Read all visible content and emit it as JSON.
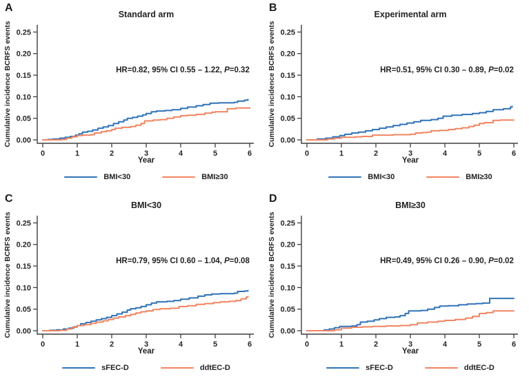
{
  "figure": {
    "background": "#ffffff",
    "colors": {
      "series1": "#2f72b8",
      "series2": "#f28460",
      "axis": "#3d3d3d",
      "text": "#262626"
    },
    "axes": {
      "ylabel": "Cumulative incidence BCRFS events",
      "xlabel": "Year",
      "xlim": [
        0,
        6
      ],
      "ylim": [
        0,
        0.27
      ],
      "grid": false,
      "legend_position": "bottom-center",
      "yticks": [
        {
          "v": 0.0,
          "label": "0.00"
        },
        {
          "v": 0.05,
          "label": "0.05"
        },
        {
          "v": 0.1,
          "label": "0.10"
        },
        {
          "v": 0.15,
          "label": "0.15"
        },
        {
          "v": 0.2,
          "label": "0.20"
        },
        {
          "v": 0.25,
          "label": "0.25"
        }
      ],
      "xticks": [
        {
          "v": 0,
          "label": "0"
        },
        {
          "v": 1,
          "label": "1"
        },
        {
          "v": 2,
          "label": "2"
        },
        {
          "v": 3,
          "label": "3"
        },
        {
          "v": 4,
          "label": "4"
        },
        {
          "v": 5,
          "label": "5"
        },
        {
          "v": 6,
          "label": "6"
        }
      ]
    }
  },
  "chart_data": [
    {
      "type": "line",
      "panel": "A",
      "title": "Standard arm",
      "xlabel": "Year",
      "ylabel": "Cumulative incidence BCRFS events",
      "annotation": "HR=0.82, 95% CI 0.55 – 1.22, P=0.32",
      "annotation_prefix": "HR=0.82, 95% CI 0.55 – 1.22, ",
      "annotation_p": "P",
      "annotation_suffix": "=0.32",
      "legend": [
        "BMI<30",
        "BMI≥30"
      ],
      "series": [
        {
          "name": "BMI<30",
          "color_key": "series1",
          "points": [
            [
              0,
              0
            ],
            [
              0.15,
              0.001
            ],
            [
              0.3,
              0.002
            ],
            [
              0.5,
              0.004
            ],
            [
              0.65,
              0.006
            ],
            [
              0.8,
              0.008
            ],
            [
              0.95,
              0.011
            ],
            [
              1.05,
              0.014
            ],
            [
              1.15,
              0.018
            ],
            [
              1.3,
              0.02
            ],
            [
              1.45,
              0.023
            ],
            [
              1.6,
              0.027
            ],
            [
              1.75,
              0.03
            ],
            [
              1.9,
              0.033
            ],
            [
              2.05,
              0.038
            ],
            [
              2.2,
              0.042
            ],
            [
              2.35,
              0.046
            ],
            [
              2.45,
              0.05
            ],
            [
              2.6,
              0.052
            ],
            [
              2.75,
              0.055
            ],
            [
              2.9,
              0.058
            ],
            [
              3.0,
              0.061
            ],
            [
              3.15,
              0.065
            ],
            [
              3.3,
              0.067
            ],
            [
              3.55,
              0.068
            ],
            [
              3.75,
              0.07
            ],
            [
              4.0,
              0.073
            ],
            [
              4.2,
              0.076
            ],
            [
              4.45,
              0.079
            ],
            [
              4.65,
              0.082
            ],
            [
              4.85,
              0.085
            ],
            [
              5.1,
              0.086
            ],
            [
              5.55,
              0.087
            ],
            [
              5.65,
              0.09
            ],
            [
              5.85,
              0.092
            ],
            [
              5.95,
              0.094
            ]
          ]
        },
        {
          "name": "BMI≥30",
          "color_key": "series2",
          "points": [
            [
              0,
              0
            ],
            [
              0.55,
              0.001
            ],
            [
              0.7,
              0.004
            ],
            [
              0.85,
              0.007
            ],
            [
              1.0,
              0.01
            ],
            [
              1.15,
              0.011
            ],
            [
              1.4,
              0.012
            ],
            [
              1.5,
              0.016
            ],
            [
              1.7,
              0.019
            ],
            [
              1.85,
              0.021
            ],
            [
              2.0,
              0.024
            ],
            [
              2.1,
              0.027
            ],
            [
              2.3,
              0.029
            ],
            [
              2.55,
              0.031
            ],
            [
              2.7,
              0.034
            ],
            [
              2.85,
              0.038
            ],
            [
              2.95,
              0.044
            ],
            [
              3.2,
              0.046
            ],
            [
              3.4,
              0.047
            ],
            [
              3.6,
              0.05
            ],
            [
              3.8,
              0.053
            ],
            [
              4.0,
              0.056
            ],
            [
              4.2,
              0.057
            ],
            [
              4.45,
              0.059
            ],
            [
              4.7,
              0.062
            ],
            [
              4.9,
              0.064
            ],
            [
              5.0,
              0.065
            ],
            [
              5.35,
              0.072
            ],
            [
              5.6,
              0.074
            ],
            [
              6.0,
              0.075
            ]
          ]
        }
      ]
    },
    {
      "type": "line",
      "panel": "B",
      "title": "Experimental arm",
      "xlabel": "Year",
      "ylabel": "Cumulative incidence BCRFS events",
      "annotation": "HR=0.51, 95% CI 0.30 – 0.89, P=0.02",
      "annotation_prefix": "HR=0.51, 95% CI 0.30 – 0.89, ",
      "annotation_p": "P",
      "annotation_suffix": "=0.02",
      "legend": [
        "BMI<30",
        "BMI≥30"
      ],
      "series": [
        {
          "name": "BMI<30",
          "color_key": "series1",
          "points": [
            [
              0,
              0
            ],
            [
              0.3,
              0.002
            ],
            [
              0.55,
              0.004
            ],
            [
              0.75,
              0.007
            ],
            [
              0.95,
              0.01
            ],
            [
              1.1,
              0.013
            ],
            [
              1.3,
              0.016
            ],
            [
              1.5,
              0.018
            ],
            [
              1.7,
              0.021
            ],
            [
              1.9,
              0.024
            ],
            [
              2.1,
              0.027
            ],
            [
              2.3,
              0.03
            ],
            [
              2.5,
              0.033
            ],
            [
              2.7,
              0.036
            ],
            [
              2.9,
              0.039
            ],
            [
              3.1,
              0.042
            ],
            [
              3.3,
              0.045
            ],
            [
              3.6,
              0.047
            ],
            [
              3.8,
              0.05
            ],
            [
              3.95,
              0.055
            ],
            [
              4.2,
              0.057
            ],
            [
              4.5,
              0.059
            ],
            [
              4.8,
              0.061
            ],
            [
              5.0,
              0.063
            ],
            [
              5.2,
              0.066
            ],
            [
              5.4,
              0.07
            ],
            [
              5.7,
              0.072
            ],
            [
              5.9,
              0.076
            ],
            [
              5.95,
              0.078
            ]
          ]
        },
        {
          "name": "BMI≥30",
          "color_key": "series2",
          "points": [
            [
              0,
              0
            ],
            [
              0.6,
              0.002
            ],
            [
              0.8,
              0.004
            ],
            [
              1.0,
              0.006
            ],
            [
              1.4,
              0.007
            ],
            [
              1.6,
              0.008
            ],
            [
              1.9,
              0.011
            ],
            [
              2.5,
              0.012
            ],
            [
              3.0,
              0.013
            ],
            [
              3.15,
              0.016
            ],
            [
              3.35,
              0.017
            ],
            [
              3.5,
              0.018
            ],
            [
              3.6,
              0.021
            ],
            [
              3.85,
              0.022
            ],
            [
              4.1,
              0.024
            ],
            [
              4.3,
              0.026
            ],
            [
              4.5,
              0.028
            ],
            [
              4.7,
              0.031
            ],
            [
              4.85,
              0.034
            ],
            [
              5.0,
              0.038
            ],
            [
              5.15,
              0.04
            ],
            [
              5.4,
              0.045
            ],
            [
              5.6,
              0.046
            ],
            [
              6.0,
              0.046
            ]
          ]
        }
      ]
    },
    {
      "type": "line",
      "panel": "C",
      "title": "BMI<30",
      "xlabel": "Year",
      "ylabel": "Cumulative incidence BCRFS events",
      "annotation": "HR=0.79, 95% CI 0.60 – 1.04, P=0.08",
      "annotation_prefix": "HR=0.79, 95% CI 0.60 – 1.04, ",
      "annotation_p": "P",
      "annotation_suffix": "=0.08",
      "legend": [
        "sFEC-D",
        "ddtEC-D"
      ],
      "series": [
        {
          "name": "sFEC-D",
          "color_key": "series1",
          "points": [
            [
              0,
              0
            ],
            [
              0.2,
              0.001
            ],
            [
              0.4,
              0.002
            ],
            [
              0.6,
              0.004
            ],
            [
              0.75,
              0.006
            ],
            [
              0.9,
              0.009
            ],
            [
              1.0,
              0.012
            ],
            [
              1.1,
              0.016
            ],
            [
              1.25,
              0.019
            ],
            [
              1.4,
              0.022
            ],
            [
              1.55,
              0.025
            ],
            [
              1.7,
              0.028
            ],
            [
              1.85,
              0.031
            ],
            [
              2.0,
              0.035
            ],
            [
              2.15,
              0.039
            ],
            [
              2.3,
              0.043
            ],
            [
              2.45,
              0.048
            ],
            [
              2.55,
              0.051
            ],
            [
              2.7,
              0.053
            ],
            [
              2.85,
              0.056
            ],
            [
              3.0,
              0.06
            ],
            [
              3.15,
              0.064
            ],
            [
              3.3,
              0.067
            ],
            [
              3.6,
              0.068
            ],
            [
              3.8,
              0.07
            ],
            [
              4.0,
              0.073
            ],
            [
              4.25,
              0.076
            ],
            [
              4.5,
              0.08
            ],
            [
              4.7,
              0.083
            ],
            [
              4.9,
              0.085
            ],
            [
              5.15,
              0.086
            ],
            [
              5.55,
              0.087
            ],
            [
              5.65,
              0.091
            ],
            [
              5.85,
              0.092
            ],
            [
              5.95,
              0.093
            ]
          ]
        },
        {
          "name": "ddtEC-D",
          "color_key": "series2",
          "points": [
            [
              0,
              0
            ],
            [
              0.5,
              0.001
            ],
            [
              0.7,
              0.004
            ],
            [
              0.85,
              0.008
            ],
            [
              1.0,
              0.012
            ],
            [
              1.2,
              0.014
            ],
            [
              1.4,
              0.017
            ],
            [
              1.55,
              0.02
            ],
            [
              1.75,
              0.023
            ],
            [
              1.9,
              0.026
            ],
            [
              2.05,
              0.029
            ],
            [
              2.2,
              0.032
            ],
            [
              2.4,
              0.035
            ],
            [
              2.55,
              0.038
            ],
            [
              2.7,
              0.041
            ],
            [
              2.85,
              0.044
            ],
            [
              3.0,
              0.046
            ],
            [
              3.2,
              0.049
            ],
            [
              3.4,
              0.051
            ],
            [
              3.7,
              0.052
            ],
            [
              3.95,
              0.056
            ],
            [
              4.2,
              0.058
            ],
            [
              4.45,
              0.061
            ],
            [
              4.7,
              0.063
            ],
            [
              4.95,
              0.065
            ],
            [
              5.15,
              0.067
            ],
            [
              5.4,
              0.068
            ],
            [
              5.6,
              0.07
            ],
            [
              5.75,
              0.074
            ],
            [
              5.9,
              0.078
            ],
            [
              5.95,
              0.079
            ]
          ]
        }
      ]
    },
    {
      "type": "line",
      "panel": "D",
      "title": "BMI≥30",
      "xlabel": "Year",
      "ylabel": "Cumulative incidence BCRFS events",
      "annotation": "HR=0.49, 95% CI 0.26 – 0.90, P=0.02",
      "annotation_prefix": "HR=0.49, 95% CI 0.26 – 0.90, ",
      "annotation_p": "P",
      "annotation_suffix": "=0.02",
      "legend": [
        "sFEC-D",
        "ddtEC-D"
      ],
      "series": [
        {
          "name": "sFEC-D",
          "color_key": "series1",
          "points": [
            [
              0,
              0
            ],
            [
              0.5,
              0.002
            ],
            [
              0.65,
              0.004
            ],
            [
              0.8,
              0.007
            ],
            [
              0.95,
              0.01
            ],
            [
              1.3,
              0.011
            ],
            [
              1.45,
              0.014
            ],
            [
              1.55,
              0.02
            ],
            [
              1.75,
              0.022
            ],
            [
              1.95,
              0.025
            ],
            [
              2.1,
              0.028
            ],
            [
              2.3,
              0.031
            ],
            [
              2.55,
              0.032
            ],
            [
              2.7,
              0.035
            ],
            [
              2.85,
              0.04
            ],
            [
              2.95,
              0.046
            ],
            [
              3.3,
              0.047
            ],
            [
              3.5,
              0.05
            ],
            [
              3.7,
              0.054
            ],
            [
              3.85,
              0.057
            ],
            [
              4.1,
              0.058
            ],
            [
              4.4,
              0.06
            ],
            [
              4.65,
              0.062
            ],
            [
              4.9,
              0.063
            ],
            [
              5.1,
              0.064
            ],
            [
              5.3,
              0.075
            ],
            [
              6.0,
              0.075
            ]
          ]
        },
        {
          "name": "ddtEC-D",
          "color_key": "series2",
          "points": [
            [
              0,
              0
            ],
            [
              0.8,
              0.002
            ],
            [
              1.0,
              0.006
            ],
            [
              1.3,
              0.008
            ],
            [
              1.6,
              0.009
            ],
            [
              1.9,
              0.01
            ],
            [
              2.3,
              0.011
            ],
            [
              2.7,
              0.012
            ],
            [
              3.0,
              0.014
            ],
            [
              3.2,
              0.018
            ],
            [
              3.5,
              0.02
            ],
            [
              3.8,
              0.022
            ],
            [
              4.0,
              0.024
            ],
            [
              4.3,
              0.026
            ],
            [
              4.6,
              0.029
            ],
            [
              4.8,
              0.033
            ],
            [
              5.0,
              0.04
            ],
            [
              5.2,
              0.042
            ],
            [
              5.4,
              0.046
            ],
            [
              6.0,
              0.046
            ]
          ]
        }
      ]
    }
  ]
}
